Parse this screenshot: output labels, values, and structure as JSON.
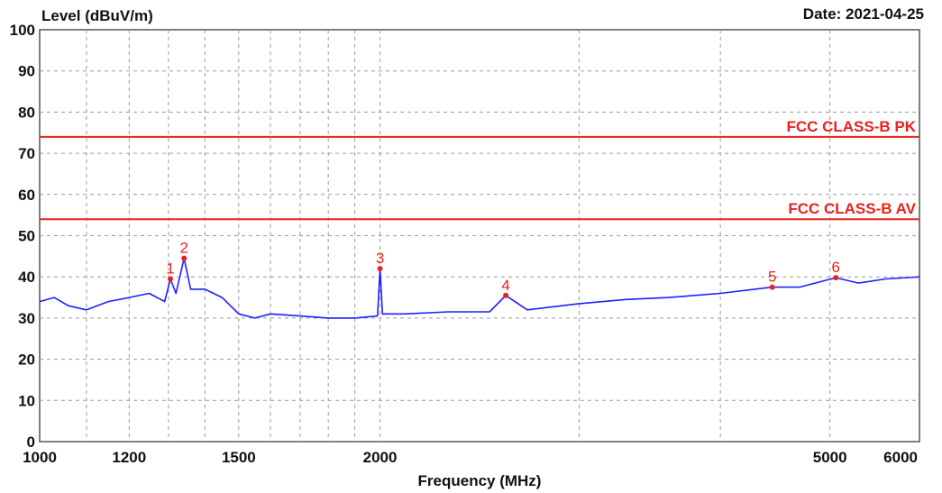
{
  "header": {
    "ylabel": "Level (dBuV/m)",
    "date": "Date: 2021-04-25"
  },
  "chart_data": {
    "type": "line",
    "xlabel": "Frequency (MHz)",
    "ylabel": "Level (dBuV/m)",
    "x_scale": "log",
    "xlim": [
      1000,
      6000
    ],
    "ylim": [
      0,
      100
    ],
    "x_ticks": [
      1000,
      1200,
      1500,
      2000,
      5000,
      6000
    ],
    "x_gridlines": [
      1000,
      1100,
      1200,
      1300,
      1400,
      1500,
      1600,
      1700,
      1800,
      1900,
      2000,
      3000,
      4000,
      5000,
      6000
    ],
    "y_ticks": [
      0,
      10,
      20,
      30,
      40,
      50,
      60,
      70,
      80,
      90,
      100
    ],
    "grid": true,
    "colors": {
      "trace": "#1f1fff",
      "limit": "#e8221c",
      "marker": "#e8221c",
      "grid": "#9a9a9a"
    },
    "limits": [
      {
        "name": "FCC CLASS-B PK",
        "value": 74
      },
      {
        "name": "FCC CLASS-B AV",
        "value": 54
      }
    ],
    "markers": [
      {
        "label": "1",
        "x": 1305,
        "y": 39.5
      },
      {
        "label": "2",
        "x": 1342,
        "y": 44.5
      },
      {
        "label": "3",
        "x": 2000,
        "y": 42
      },
      {
        "label": "4",
        "x": 2584,
        "y": 35.5
      },
      {
        "label": "5",
        "x": 4446,
        "y": 37.5
      },
      {
        "label": "6",
        "x": 5061,
        "y": 39.8
      }
    ],
    "series": [
      {
        "x": [
          1000,
          1030,
          1060,
          1100,
          1150,
          1200,
          1250,
          1290,
          1305,
          1320,
          1342,
          1360,
          1400,
          1450,
          1500,
          1550,
          1600,
          1700,
          1800,
          1900,
          1990,
          2000,
          2010,
          2100,
          2300,
          2500,
          2584,
          2700,
          3000,
          3300,
          3600,
          4000,
          4446,
          4700,
          5061,
          5300,
          5600,
          6000
        ],
        "y": [
          34,
          35,
          33,
          32,
          34,
          35,
          36,
          34,
          39.5,
          36,
          44.5,
          37,
          37,
          35,
          31,
          30,
          31,
          30.5,
          30,
          30,
          30.5,
          42,
          31,
          31,
          31.5,
          31.5,
          35.5,
          32,
          33.5,
          34.5,
          35,
          36,
          37.5,
          37.5,
          39.8,
          38.5,
          39.5,
          40
        ]
      }
    ]
  }
}
